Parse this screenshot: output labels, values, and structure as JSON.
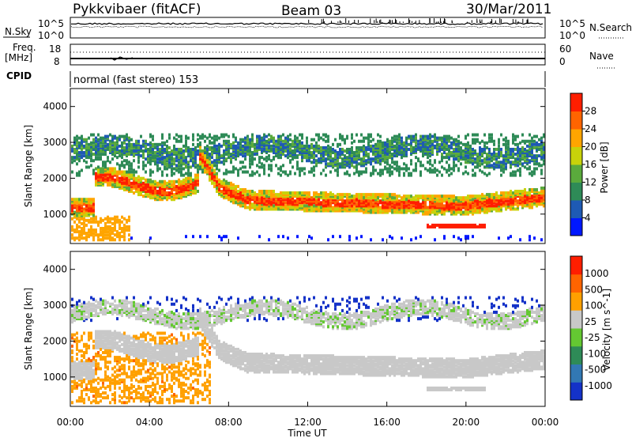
{
  "header": {
    "station": "Pykkvibaer (fitACF)",
    "beam": "Beam 03",
    "date": "30/Mar/2011"
  },
  "noise_panel": {
    "left_label": "N.Sky",
    "left_ticks": [
      "10^5",
      "10^0"
    ],
    "right_ticks": [
      "10^5",
      "10^0"
    ],
    "right_label": "N.Search"
  },
  "freq_panel": {
    "left_label_1": "Freq.",
    "left_label_2": "[MHz]",
    "left_ticks": [
      "18",
      "8"
    ],
    "right_ticks": [
      "60",
      "0"
    ],
    "right_label": "Nave"
  },
  "cpid": {
    "label": "CPID",
    "value": "normal (fast stereo) 153"
  },
  "chart_data": [
    {
      "type": "heatmap",
      "name": "Power",
      "ylabel": "Slant Range [km]",
      "xlabel": "Time UT",
      "xlim": [
        "00:00",
        "24:00"
      ],
      "ylim": [
        180,
        4500
      ],
      "x_ticks": [
        "00:00",
        "04:00",
        "08:00",
        "12:00",
        "16:00",
        "20:00",
        "00:00"
      ],
      "y_ticks": [
        "1000",
        "2000",
        "3000",
        "4000"
      ],
      "colorbar": {
        "label": "Power [dB]",
        "ticks": [
          "4",
          "8",
          "12",
          "16",
          "20",
          "24",
          "28"
        ],
        "range": [
          0,
          30
        ],
        "colors": [
          "#0018ff",
          "#1e5ab4",
          "#2e8b57",
          "#5aaa3c",
          "#c8d20a",
          "#ffa500",
          "#ff6400",
          "#ff1e00"
        ]
      }
    },
    {
      "type": "heatmap",
      "name": "Velocity",
      "ylabel": "Slant Range [km]",
      "xlabel": "Time UT",
      "xlim": [
        "00:00",
        "24:00"
      ],
      "ylim": [
        180,
        4500
      ],
      "x_ticks": [
        "00:00",
        "04:00",
        "08:00",
        "12:00",
        "16:00",
        "20:00",
        "00:00"
      ],
      "y_ticks": [
        "1000",
        "2000",
        "3000",
        "4000"
      ],
      "colorbar": {
        "label": "Velocity [m s^-1]",
        "ticks": [
          "1000",
          "500",
          "100",
          "25",
          "-25",
          "-100",
          "-500",
          "-1000"
        ],
        "colors": [
          "#1432c8",
          "#3278b4",
          "#2e8b57",
          "#64c832",
          "#c8c8c8",
          "#ffa000",
          "#ff6400",
          "#ff1e00"
        ]
      }
    }
  ],
  "x_axis": {
    "label": "Time UT",
    "ticks": [
      "00:00",
      "04:00",
      "08:00",
      "12:00",
      "16:00",
      "20:00",
      "00:00"
    ]
  }
}
